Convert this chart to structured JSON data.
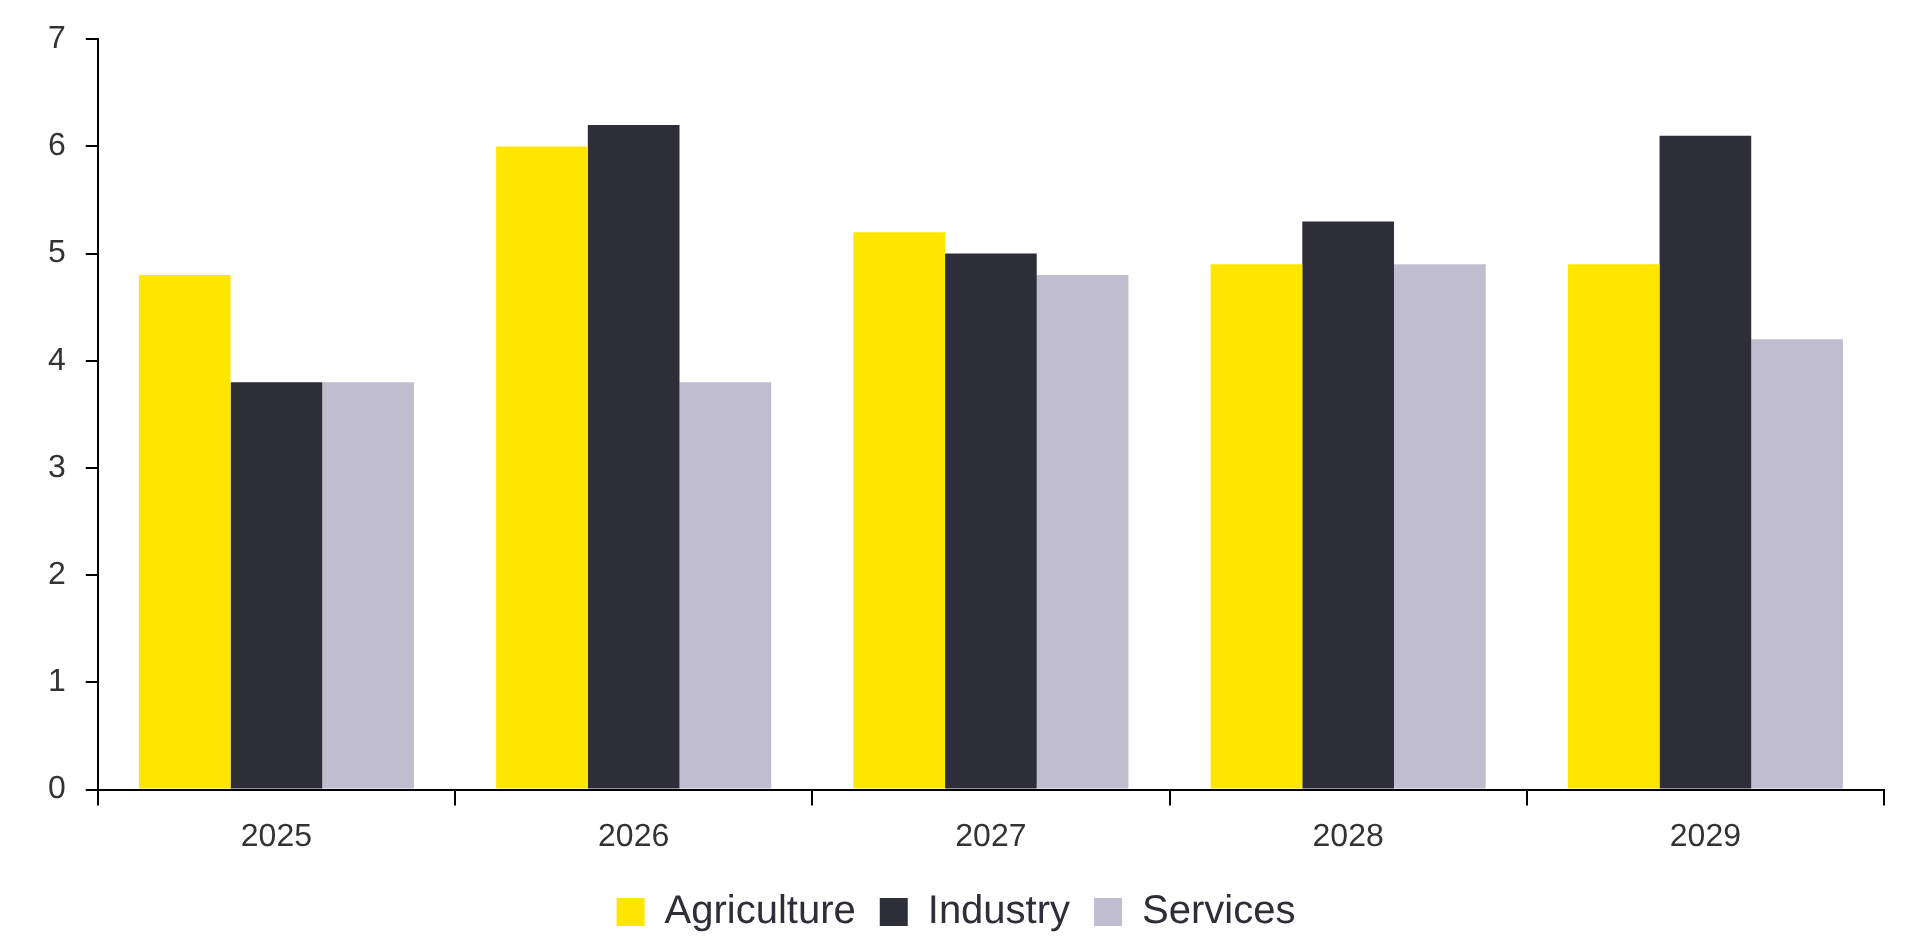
{
  "chart_data": {
    "type": "bar",
    "categories": [
      "2025",
      "2026",
      "2027",
      "2028",
      "2029"
    ],
    "series": [
      {
        "name": "Agriculture",
        "color": "#ffe600",
        "values": [
          4.8,
          6.0,
          5.2,
          4.9,
          4.9
        ]
      },
      {
        "name": "Industry",
        "color": "#2e2e38",
        "values": [
          3.8,
          6.2,
          5.0,
          5.3,
          6.1
        ]
      },
      {
        "name": "Services",
        "color": "#c0bdd1",
        "values": [
          3.8,
          3.8,
          4.8,
          4.9,
          4.2
        ]
      }
    ],
    "ylim": [
      0,
      7
    ],
    "yticks": [
      0,
      1,
      2,
      3,
      4,
      5,
      6,
      7
    ],
    "grid": false,
    "legend": "bottom"
  }
}
